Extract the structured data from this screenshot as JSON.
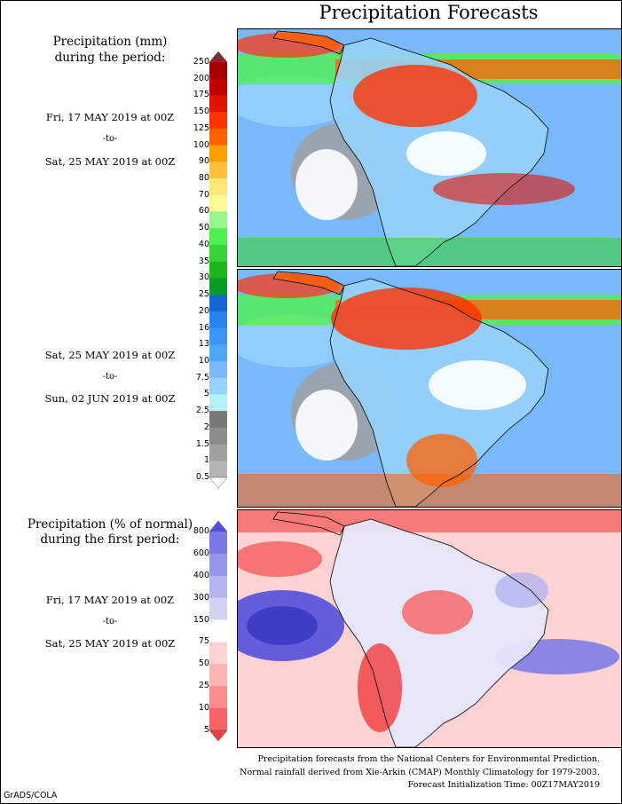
{
  "title": "Precipitation Forecasts",
  "colors": {
    "precip_scale": [
      "#ffffff",
      "#b4b4b4",
      "#a0a0a0",
      "#8c8c8c",
      "#787878",
      "#b4f0fa",
      "#96d2fa",
      "#78b9fa",
      "#50a5f5",
      "#3c96f5",
      "#2882f0",
      "#1464d2",
      "#0a9c28",
      "#1eb41e",
      "#37d23c",
      "#50f050",
      "#96f58c",
      "#fafa96",
      "#ffe878",
      "#ffc03c",
      "#ffa000",
      "#ff6000",
      "#ff3200",
      "#e11400",
      "#c00000",
      "#a50000",
      "#7a3030"
    ],
    "anom_scale": [
      "#f03c3c",
      "#f56464",
      "#fa8c8c",
      "#fab4b4",
      "#fcd2d2",
      "#ffffff",
      "#d2d2f5",
      "#b4b4f0",
      "#9696eb",
      "#7878e6",
      "#5050dc"
    ],
    "land_outline": "#000000"
  },
  "sections": {
    "precip": {
      "title_line1": "Precipitation (mm)",
      "title_line2": "during the period:",
      "period1": {
        "from": "Fri, 17 MAY 2019 at 00Z",
        "to": "-to-",
        "until": "Sat, 25 MAY 2019 at 00Z"
      },
      "period2": {
        "from": "Sat, 25 MAY 2019 at 00Z",
        "to": "-to-",
        "until": "Sun, 02 JUN 2019 at 00Z"
      },
      "scale_labels": [
        "250",
        "200",
        "175",
        "150",
        "125",
        "100",
        "90",
        "80",
        "70",
        "60",
        "50",
        "40",
        "35",
        "30",
        "25",
        "20",
        "16",
        "13",
        "10",
        "7.5",
        "5",
        "2.5",
        "2",
        "1.5",
        "1",
        "0.5"
      ]
    },
    "anomaly": {
      "title_line1": "Precipitation (% of normal)",
      "title_line2": "during the first period:",
      "period": {
        "from": "Fri, 17 MAY 2019 at 00Z",
        "to": "-to-",
        "until": "Sat, 25 MAY 2019 at 00Z"
      },
      "scale_labels": [
        "800",
        "600",
        "400",
        "300",
        "150",
        "75",
        "50",
        "25",
        "10",
        "5"
      ]
    }
  },
  "footer": {
    "line1": "Precipitation forecasts from the National Centers for Environmental Prediction.",
    "line2": "Normal rainfall derived from Xie-Arkin (CMAP) Monthly Climatology for 1979-2003.",
    "line3": "Forecast Initialization Time: 00Z17MAY2019"
  },
  "credit": "GrADS/COLA"
}
